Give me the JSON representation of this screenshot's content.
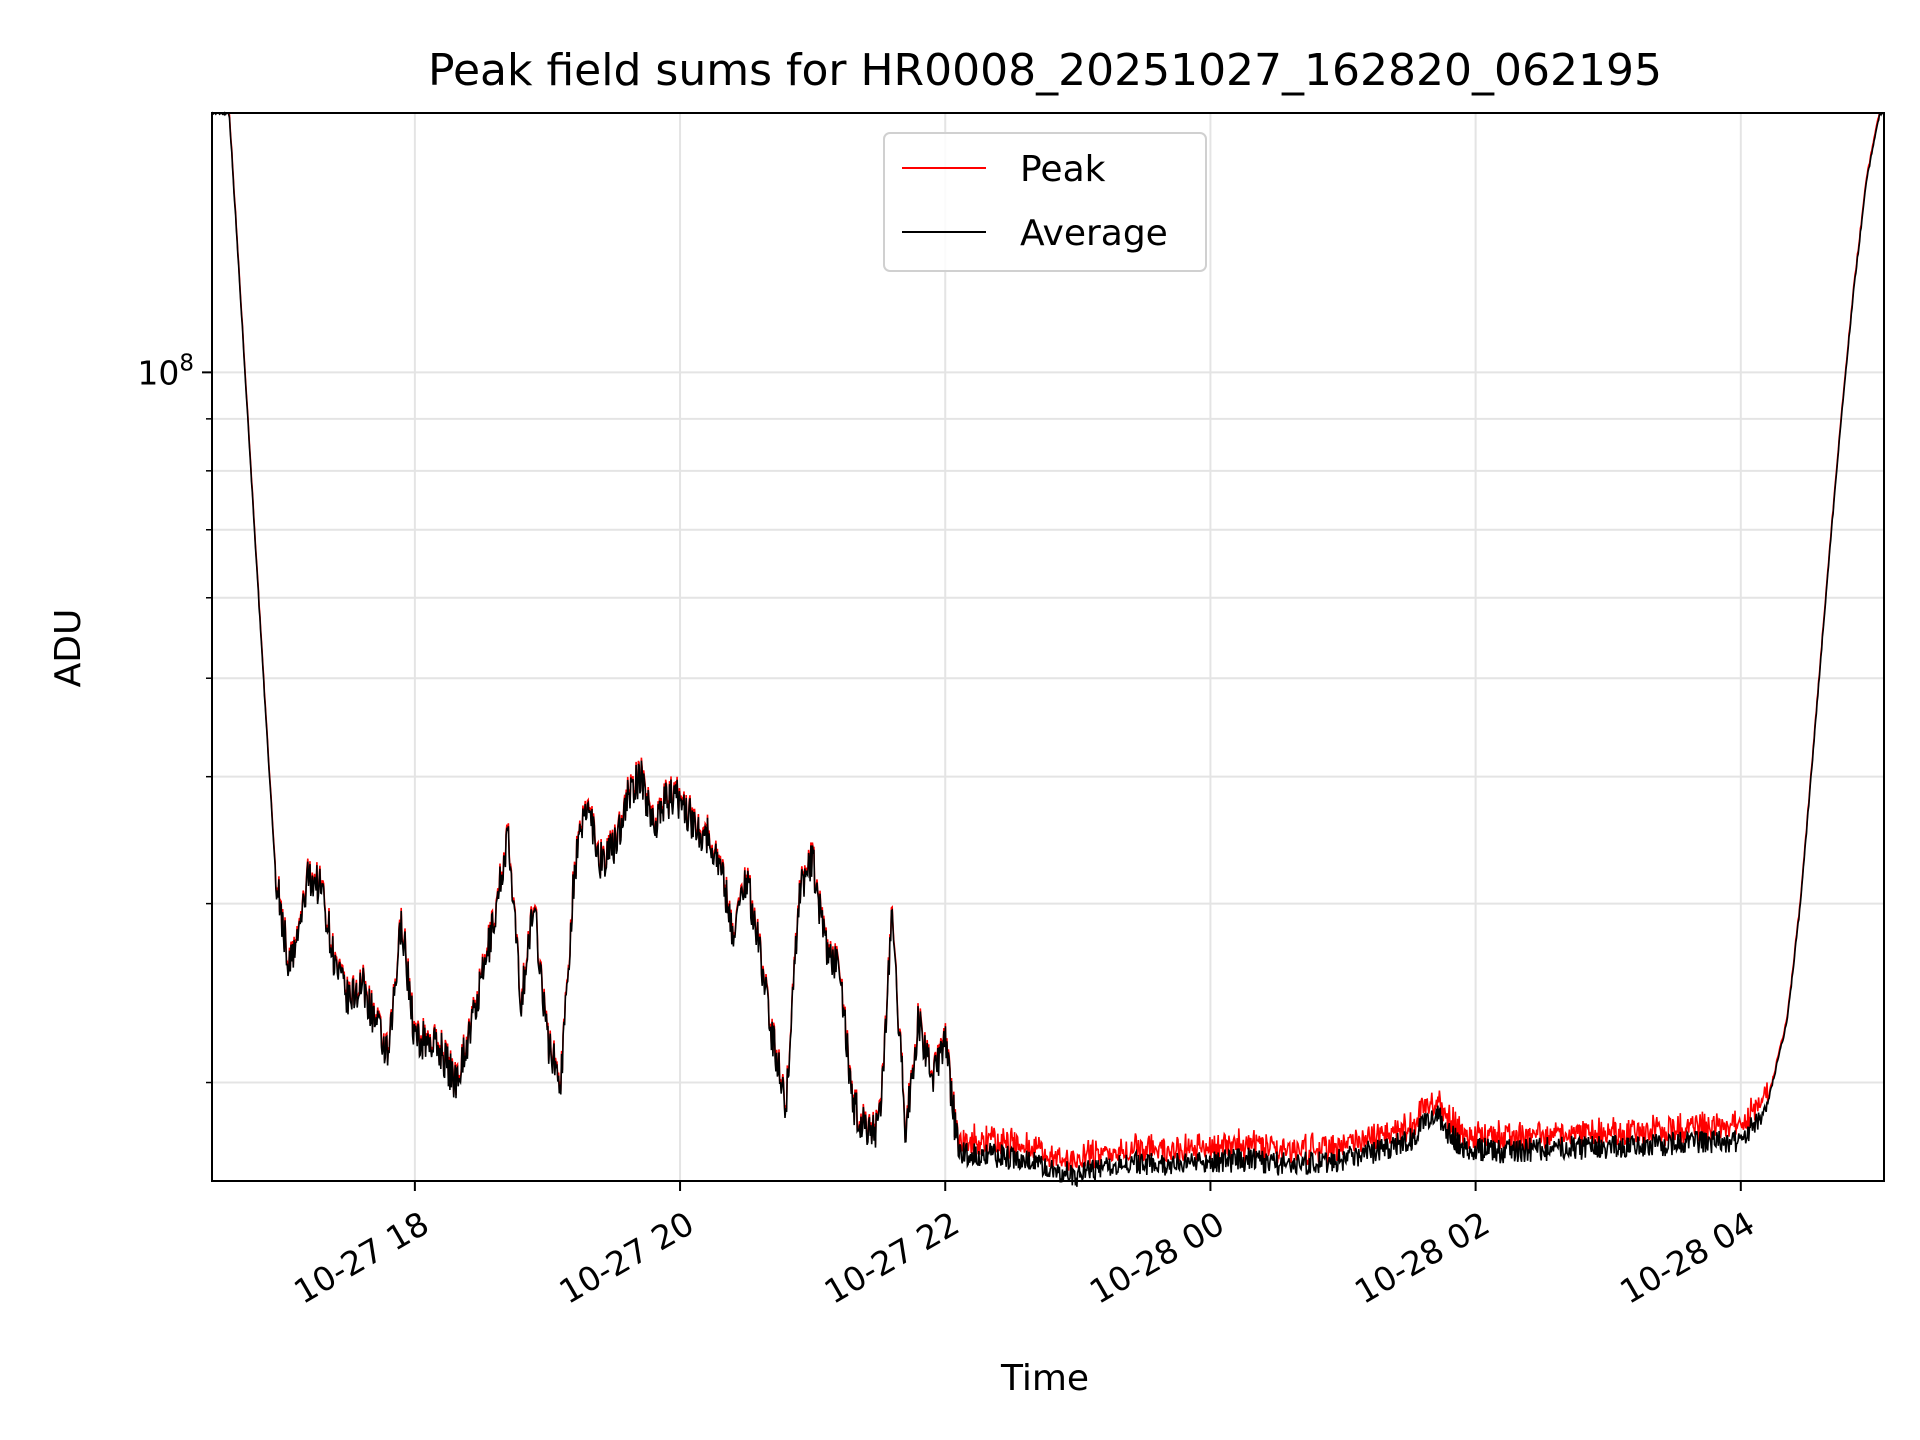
{
  "chart_data": {
    "type": "line",
    "title": "Peak field sums for HR0008_20251027_162820_062195",
    "xlabel": "Time",
    "ylabel": "ADU",
    "yscale": "log",
    "ylim": [
      16000000.0,
      180000000.0
    ],
    "xlim_hours": [
      16.47,
      5.08
    ],
    "x_tick_labels": [
      "10-27 18",
      "10-27 20",
      "10-27 22",
      "10-28 00",
      "10-28 02",
      "10-28 04"
    ],
    "x_tick_hours": [
      18,
      20,
      22,
      24,
      26,
      28
    ],
    "y_tick_label_base": "10",
    "y_tick_label_exp": "8",
    "y_major_value": 100000000.0,
    "y_minor_values": [
      20000000.0,
      30000000.0,
      40000000.0,
      50000000.0,
      60000000.0,
      70000000.0,
      80000000.0,
      90000000.0,
      200000000.0
    ],
    "legend": [
      {
        "name": "Peak",
        "color": "#ff0000"
      },
      {
        "name": "Average",
        "color": "#000000"
      }
    ],
    "legend_position": "top-center",
    "grid": true,
    "series_hours_from_start": [
      16.47,
      16.6,
      16.7,
      16.85,
      16.95,
      17.05,
      17.1,
      17.2,
      17.3,
      17.4,
      17.5,
      17.6,
      17.7,
      17.8,
      17.9,
      18.0,
      18.1,
      18.2,
      18.3,
      18.4,
      18.5,
      18.6,
      18.7,
      18.8,
      18.9,
      19.0,
      19.1,
      19.2,
      19.3,
      19.4,
      19.5,
      19.6,
      19.7,
      19.8,
      19.9,
      20.0,
      20.1,
      20.2,
      20.3,
      20.4,
      20.5,
      20.6,
      20.7,
      20.8,
      20.9,
      21.0,
      21.1,
      21.2,
      21.3,
      21.4,
      21.5,
      21.6,
      21.7,
      21.8,
      21.9,
      22.0,
      22.1,
      22.3,
      22.6,
      23.0,
      23.3,
      23.6,
      24.0,
      24.3,
      24.6,
      25.0,
      25.3,
      25.5,
      25.7,
      25.8,
      25.9,
      26.2,
      26.5,
      27.0,
      27.5,
      28.0,
      28.2,
      28.35,
      28.45,
      28.55,
      28.65,
      28.75,
      28.85,
      28.95,
      29.05,
      29.08
    ],
    "series_values": [
      180000000.0,
      180000000.0,
      110000000.0,
      52000000.0,
      32000000.0,
      26000000.0,
      27000000.0,
      32000000.0,
      31000000.0,
      26000000.0,
      24000000.0,
      25000000.0,
      23000000.0,
      21000000.0,
      29000000.0,
      22000000.0,
      22000000.0,
      21500000.0,
      20000000.0,
      22000000.0,
      25000000.0,
      29000000.0,
      35000000.0,
      24000000.0,
      30000000.0,
      22000000.0,
      20000000.0,
      32000000.0,
      38000000.0,
      33000000.0,
      34000000.0,
      38000000.0,
      40000000.0,
      36000000.0,
      38000000.0,
      38000000.0,
      36000000.0,
      35000000.0,
      33000000.0,
      28000000.0,
      32000000.0,
      27000000.0,
      22000000.0,
      19000000.0,
      31000000.0,
      33000000.0,
      27000000.0,
      26000000.0,
      19000000.0,
      18000000.0,
      18000000.0,
      29000000.0,
      18000000.0,
      23000000.0,
      20000000.0,
      22000000.0,
      17000000.0,
      17000000.0,
      16800000.0,
      16200000.0,
      16700000.0,
      16600000.0,
      16700000.0,
      16800000.0,
      16600000.0,
      16800000.0,
      17200000.0,
      17500000.0,
      18800000.0,
      17800000.0,
      17300000.0,
      17100000.0,
      17200000.0,
      17300000.0,
      17400000.0,
      17500000.0,
      19000000.0,
      23000000.0,
      30000000.0,
      43000000.0,
      62000000.0,
      88000000.0,
      120000000.0,
      155000000.0,
      180000000.0,
      180000000.0
    ]
  }
}
